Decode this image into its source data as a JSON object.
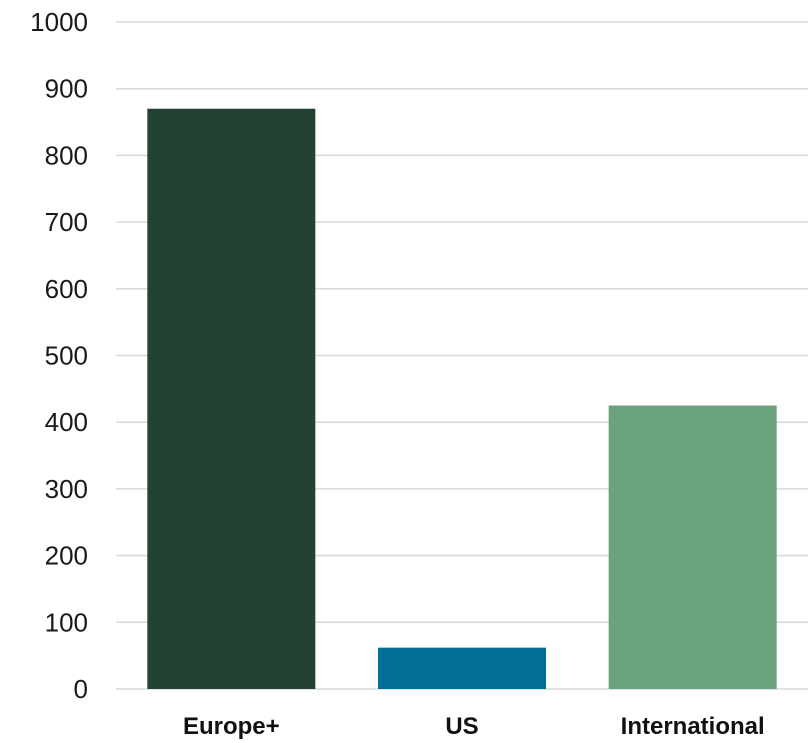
{
  "chart_data": {
    "type": "bar",
    "title": "",
    "xlabel": "",
    "ylabel": "",
    "categories": [
      "Europe+",
      "US",
      "International"
    ],
    "values": [
      870,
      62,
      425
    ],
    "colors": [
      "#234233",
      "#006E96",
      "#69A27C"
    ],
    "ylim": [
      0,
      1000
    ],
    "yticks": [
      0,
      100,
      200,
      300,
      400,
      500,
      600,
      700,
      800,
      900,
      1000
    ],
    "ytick_labels": [
      "0",
      "100",
      "200",
      "300",
      "400",
      "500",
      "600",
      "700",
      "800",
      "900",
      "1000"
    ],
    "grid": true,
    "gridline_color": "#d9d9d9",
    "legend": "none"
  }
}
